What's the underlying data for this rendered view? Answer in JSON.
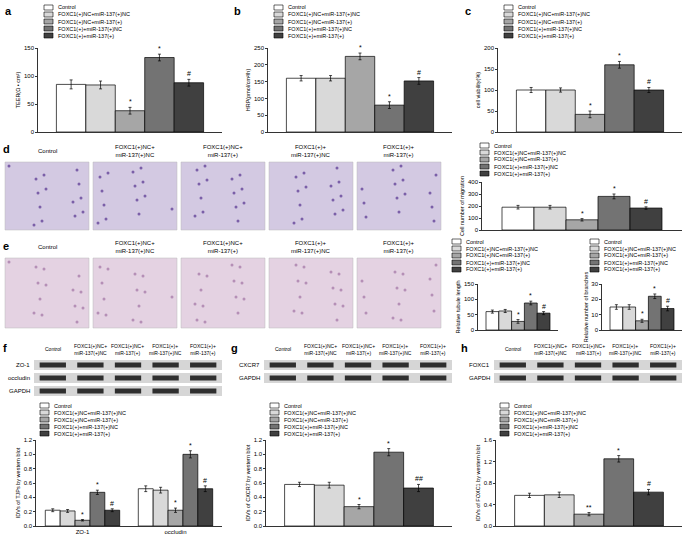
{
  "chart_data": [
    {
      "type": "bar",
      "panel": "a",
      "y_label": "TEER(Ω • cm²)",
      "categories": [
        null
      ],
      "tick_labels": "y",
      "grid": false,
      "ylim": [
        0,
        150
      ],
      "yticks": [
        0,
        50,
        100,
        150
      ],
      "series": [
        {
          "name": "Control",
          "color": "#ffffff",
          "values": [
            85
          ],
          "errors": [
            8
          ],
          "significance": [
            null
          ]
        },
        {
          "name": "FOXC1(+)NC+miR-137(+)NC",
          "color": "#d9d9d9",
          "values": [
            84
          ],
          "errors": [
            7
          ],
          "significance": [
            null
          ]
        },
        {
          "name": "FOXC1(+)NC+miR-137(+)",
          "color": "#a6a6a6",
          "values": [
            38
          ],
          "errors": [
            6
          ],
          "significance": [
            "*"
          ]
        },
        {
          "name": "FOXC1(+)+miR-137(+)NC",
          "color": "#737373",
          "values": [
            133
          ],
          "errors": [
            6
          ],
          "significance": [
            "*"
          ]
        },
        {
          "name": "FOXC1(+)+miR-137(+)",
          "color": "#404040",
          "values": [
            88
          ],
          "errors": [
            6
          ],
          "significance": [
            "#"
          ]
        }
      ]
    },
    {
      "type": "bar",
      "panel": "b",
      "y_label": "HRP(pmol/cm²/h)",
      "categories": [
        null
      ],
      "tick_labels": "y",
      "grid": false,
      "ylim": [
        0,
        250
      ],
      "yticks": [
        0,
        50,
        100,
        150,
        200,
        250
      ],
      "series": [
        {
          "name": "Control",
          "color": "#ffffff",
          "values": [
            160
          ],
          "errors": [
            8
          ],
          "significance": [
            null
          ]
        },
        {
          "name": "FOXC1(+)NC+miR-137(+)NC",
          "color": "#d9d9d9",
          "values": [
            160
          ],
          "errors": [
            8
          ],
          "significance": [
            null
          ]
        },
        {
          "name": "FOXC1(+)NC+miR-137(+)",
          "color": "#a6a6a6",
          "values": [
            225
          ],
          "errors": [
            10
          ],
          "significance": [
            "*"
          ]
        },
        {
          "name": "FOXC1(+)+miR-137(+)NC",
          "color": "#737373",
          "values": [
            80
          ],
          "errors": [
            10
          ],
          "significance": [
            "*"
          ]
        },
        {
          "name": "FOXC1(+)+miR-137(+)",
          "color": "#404040",
          "values": [
            152
          ],
          "errors": [
            10
          ],
          "significance": [
            "#"
          ]
        }
      ]
    },
    {
      "type": "bar",
      "panel": "c",
      "y_label": "cell viability(%)",
      "categories": [
        null
      ],
      "tick_labels": "y",
      "grid": false,
      "ylim": [
        0,
        200
      ],
      "yticks": [
        0,
        50,
        100,
        150,
        200
      ],
      "series": [
        {
          "name": "Control",
          "color": "#ffffff",
          "values": [
            100
          ],
          "errors": [
            6
          ],
          "significance": [
            null
          ]
        },
        {
          "name": "FOXC1(+)NC+miR-137(+)NC",
          "color": "#d9d9d9",
          "values": [
            100
          ],
          "errors": [
            5
          ],
          "significance": [
            null
          ]
        },
        {
          "name": "FOXC1(+)NC+miR-137(+)",
          "color": "#a6a6a6",
          "values": [
            42
          ],
          "errors": [
            8
          ],
          "significance": [
            "*"
          ]
        },
        {
          "name": "FOXC1(+)+miR-137(+)NC",
          "color": "#737373",
          "values": [
            160
          ],
          "errors": [
            8
          ],
          "significance": [
            "*"
          ]
        },
        {
          "name": "FOXC1(+)+miR-137(+)",
          "color": "#404040",
          "values": [
            100
          ],
          "errors": [
            6
          ],
          "significance": [
            "#"
          ]
        }
      ]
    },
    {
      "type": "micrograph",
      "panel": "d",
      "labels": [
        "Control",
        "FOXC1(+)NC+miR-137(+)NC",
        "FOXC1(+)NC+miR-137(+)",
        "FOXC1(+)+miR-137(+)NC",
        "FOXC1(+)+miR-137(+)"
      ]
    },
    {
      "type": "bar",
      "y_label": "Cell number of migration",
      "categories": [
        null
      ],
      "tick_labels": "y",
      "grid": false,
      "ylim": [
        0,
        400
      ],
      "yticks": [
        0,
        100,
        200,
        300,
        400
      ],
      "series": [
        {
          "name": "Control",
          "color": "#ffffff",
          "values": [
            190
          ],
          "errors": [
            15
          ],
          "significance": [
            null
          ]
        },
        {
          "name": "FOXC1(+)NC+miR-137(+)NC",
          "color": "#d9d9d9",
          "values": [
            190
          ],
          "errors": [
            15
          ],
          "significance": [
            null
          ]
        },
        {
          "name": "FOXC1(+)NC+miR-137(+)",
          "color": "#a6a6a6",
          "values": [
            85
          ],
          "errors": [
            10
          ],
          "significance": [
            "*"
          ]
        },
        {
          "name": "FOXC1(+)+miR-137(+)NC",
          "color": "#737373",
          "values": [
            280
          ],
          "errors": [
            20
          ],
          "significance": [
            "*"
          ]
        },
        {
          "name": "FOXC1(+)+miR-137(+)",
          "color": "#404040",
          "values": [
            183
          ],
          "errors": [
            10
          ],
          "significance": [
            "#"
          ]
        }
      ]
    },
    {
      "type": "micrograph",
      "panel": "e",
      "labels": [
        "Control",
        "FOXC1(+)NC+miR-137(+)NC",
        "FOXC1(+)NC+miR-137(+)",
        "FOXC1(+)+miR-137(+)NC",
        "FOXC1(+)+miR-137(+)"
      ]
    },
    {
      "type": "bar",
      "y_label": "Relative tubule length",
      "categories": [
        null
      ],
      "tick_labels": "y",
      "grid": false,
      "ylim": [
        0,
        150
      ],
      "yticks": [
        0,
        50,
        100,
        150
      ],
      "series": [
        {
          "name": "Control",
          "color": "#ffffff",
          "values": [
            60
          ],
          "errors": [
            5
          ],
          "significance": [
            null
          ]
        },
        {
          "name": "FOXC1(+)NC+miR-137(+)NC",
          "color": "#d9d9d9",
          "values": [
            62
          ],
          "errors": [
            5
          ],
          "significance": [
            null
          ]
        },
        {
          "name": "FOXC1(+)NC+miR-137(+)",
          "color": "#a6a6a6",
          "values": [
            28
          ],
          "errors": [
            6
          ],
          "significance": [
            "*"
          ]
        },
        {
          "name": "FOXC1(+)+miR-137(+)NC",
          "color": "#737373",
          "values": [
            88
          ],
          "errors": [
            6
          ],
          "significance": [
            "*"
          ]
        },
        {
          "name": "FOXC1(+)+miR-137(+)",
          "color": "#404040",
          "values": [
            55
          ],
          "errors": [
            5
          ],
          "significance": [
            "#"
          ]
        }
      ]
    },
    {
      "type": "bar",
      "y_label": "Relative number of branches",
      "categories": [
        null
      ],
      "tick_labels": "y",
      "grid": false,
      "ylim": [
        0,
        30
      ],
      "yticks": [
        0,
        10,
        20,
        30
      ],
      "series": [
        {
          "name": "Control",
          "color": "#ffffff",
          "values": [
            15
          ],
          "errors": [
            1.5
          ],
          "significance": [
            null
          ]
        },
        {
          "name": "FOXC1(+)NC+miR-137(+)NC",
          "color": "#d9d9d9",
          "values": [
            15
          ],
          "errors": [
            1.5
          ],
          "significance": [
            null
          ]
        },
        {
          "name": "FOXC1(+)NC+miR-137(+)",
          "color": "#a6a6a6",
          "values": [
            6
          ],
          "errors": [
            1
          ],
          "significance": [
            "*"
          ]
        },
        {
          "name": "FOXC1(+)+miR-137(+)NC",
          "color": "#737373",
          "values": [
            22
          ],
          "errors": [
            1.5
          ],
          "significance": [
            "*"
          ]
        },
        {
          "name": "FOXC1(+)+miR-137(+)",
          "color": "#404040",
          "values": [
            14
          ],
          "errors": [
            1.5
          ],
          "significance": [
            "#"
          ]
        }
      ]
    },
    {
      "type": "blot",
      "panel": "f",
      "rows": [
        "ZO-1",
        "occludin",
        "GAPDH"
      ],
      "columns": [
        "Control",
        "FOXC1(+)NC+miR-137(+)NC",
        "FOXC1(+)NC+miR-137(+)",
        "FOXC1(+)+miR-137(+)NC",
        "FOXC1(+)+miR-137(+)"
      ]
    },
    {
      "type": "bar",
      "y_label": "IDVs of TJPs by western blot",
      "categories": [
        "ZO-1",
        "occludin"
      ],
      "grid": false,
      "ylim": [
        0,
        1.2
      ],
      "yticks": [
        {
          "value": 0,
          "label": "0.0"
        },
        0.2,
        0.4,
        0.6,
        0.8,
        {
          "value": 1,
          "label": "1.0"
        },
        1.2
      ],
      "series": [
        {
          "name": "Control",
          "color": "#ffffff",
          "values": [
            0.22,
            0.52
          ],
          "errors": [
            0.02,
            0.04
          ],
          "significance": [
            null,
            null
          ]
        },
        {
          "name": "FOXC1(+)NC+miR-137(+)NC",
          "color": "#d9d9d9",
          "values": [
            0.21,
            0.5
          ],
          "errors": [
            0.02,
            0.04
          ],
          "significance": [
            null,
            null
          ]
        },
        {
          "name": "FOXC1(+)NC+miR-137(+)",
          "color": "#a6a6a6",
          "values": [
            0.08,
            0.22
          ],
          "errors": [
            0.01,
            0.03
          ],
          "significance": [
            "*",
            "*"
          ]
        },
        {
          "name": "FOXC1(+)+miR-137(+)NC",
          "color": "#737373",
          "values": [
            0.47,
            1.0
          ],
          "errors": [
            0.03,
            0.05
          ],
          "significance": [
            "*",
            "*"
          ]
        },
        {
          "name": "FOXC1(+)+miR-137(+)",
          "color": "#404040",
          "values": [
            0.22,
            0.52
          ],
          "errors": [
            0.02,
            0.04
          ],
          "significance": [
            "#",
            "#"
          ]
        }
      ]
    },
    {
      "type": "blot",
      "panel": "g",
      "rows": [
        "CXCR7",
        "GAPDH"
      ],
      "columns": [
        "Control",
        "FOXC1(+)NC+miR-137(+)NC",
        "FOXC1(+)NC+miR-137(+)",
        "FOXC1(+)+miR-137(+)NC",
        "FOXC1(+)+miR-137(+)"
      ]
    },
    {
      "type": "bar",
      "y_label": "IDVs of CXCR7 by western blot",
      "categories": [
        null
      ],
      "tick_labels": "y",
      "grid": false,
      "ylim": [
        0,
        1.2
      ],
      "yticks": [
        {
          "value": 0,
          "label": "0.0"
        },
        0.2,
        0.4,
        0.6,
        0.8,
        {
          "value": 1,
          "label": "1.0"
        },
        1.2
      ],
      "series": [
        {
          "name": "Control",
          "color": "#ffffff",
          "values": [
            0.58
          ],
          "errors": [
            0.03
          ],
          "significance": [
            null
          ]
        },
        {
          "name": "FOXC1(+)NC+miR-137(+)NC",
          "color": "#d9d9d9",
          "values": [
            0.57
          ],
          "errors": [
            0.04
          ],
          "significance": [
            null
          ]
        },
        {
          "name": "FOXC1(+)NC+miR-137(+)",
          "color": "#a6a6a6",
          "values": [
            0.27
          ],
          "errors": [
            0.03
          ],
          "significance": [
            "*"
          ]
        },
        {
          "name": "FOXC1(+)+miR-137(+)NC",
          "color": "#737373",
          "values": [
            1.03
          ],
          "errors": [
            0.05
          ],
          "significance": [
            "*"
          ]
        },
        {
          "name": "FOXC1(+)+miR-137(+)",
          "color": "#404040",
          "values": [
            0.53
          ],
          "errors": [
            0.05
          ],
          "significance": [
            "##"
          ]
        }
      ]
    },
    {
      "type": "blot",
      "panel": "h",
      "rows": [
        "FOXC1",
        "GAPDH"
      ],
      "columns": [
        "Control",
        "FOXC1(+)NC+miR-137(+)NC",
        "FOXC1(+)NC+miR-137(+)",
        "FOXC1(+)+miR-137(+)NC",
        "FOXC1(+)+miR-137(+)"
      ]
    },
    {
      "type": "bar",
      "y_label": "IDVs of FOXC1 by western blot",
      "categories": [
        null
      ],
      "tick_labels": "y",
      "grid": false,
      "ylim": [
        0,
        1.6
      ],
      "yticks": [
        {
          "value": 0,
          "label": "0.0"
        },
        0.4,
        0.8,
        1.2,
        1.6
      ],
      "series": [
        {
          "name": "Control",
          "color": "#ffffff",
          "values": [
            0.57
          ],
          "errors": [
            0.04
          ],
          "significance": [
            null
          ]
        },
        {
          "name": "FOXC1(+)NC+miR-137(+)NC",
          "color": "#d9d9d9",
          "values": [
            0.58
          ],
          "errors": [
            0.05
          ],
          "significance": [
            null
          ]
        },
        {
          "name": "FOXC1(+)NC+miR-137(+)",
          "color": "#a6a6a6",
          "values": [
            0.22
          ],
          "errors": [
            0.03
          ],
          "significance": [
            "**"
          ]
        },
        {
          "name": "FOXC1(+)+miR-137(+)NC",
          "color": "#737373",
          "values": [
            1.25
          ],
          "errors": [
            0.06
          ],
          "significance": [
            "*"
          ]
        },
        {
          "name": "FOXC1(+)+miR-137(+)",
          "color": "#404040",
          "values": [
            0.63
          ],
          "errors": [
            0.05
          ],
          "significance": [
            "#"
          ]
        }
      ]
    }
  ]
}
